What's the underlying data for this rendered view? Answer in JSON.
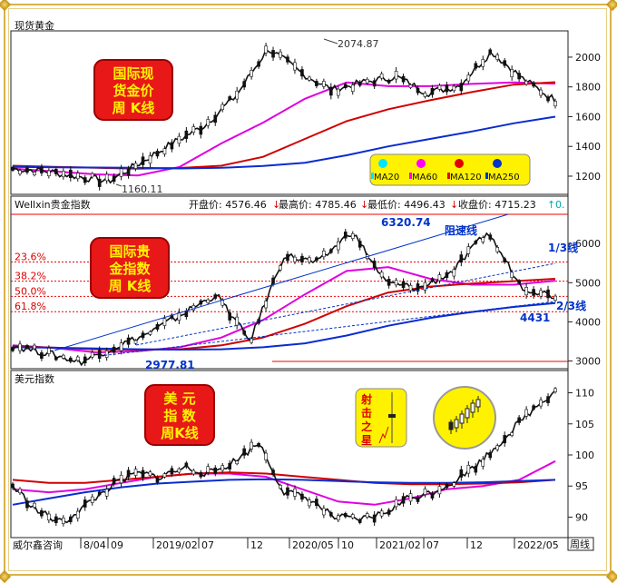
{
  "charts": [
    {
      "panel_title": "现货黄金",
      "badge": [
        "国际现",
        "货金价",
        "周 K线"
      ],
      "y_ticks": [
        "2000",
        "1800",
        "1600",
        "1400",
        "1200"
      ],
      "annotations": {
        "high": "2074.87",
        "low": "1160.11"
      },
      "legend": [
        {
          "label": "MA20",
          "color": "#00e5ff"
        },
        {
          "label": "MA60",
          "color": "#ff00ff"
        },
        {
          "label": "MA120",
          "color": "#e00000"
        },
        {
          "label": "MA250",
          "color": "#0033cc"
        }
      ]
    },
    {
      "panel_title": "Wellxin贵金指数",
      "info": {
        "open_label": "开盘价: 4576.46",
        "high_label": "最高价: 4785.46",
        "low_label": "最低价: 4496.43",
        "close_label": "收盘价: 4715.23",
        "extra_label": "0."
      },
      "badge": [
        "国际贵",
        "金指数",
        "周 K线"
      ],
      "fib_labels": [
        "23.6%",
        "38.2%",
        "50.0%",
        "61.8%"
      ],
      "y_ticks": [
        "6000",
        "5000",
        "4000",
        "3000"
      ],
      "annotations": {
        "high": "6320.74",
        "low": "2977.81",
        "support": "4431",
        "resistance_label": "阻速线",
        "one_third": "1/3线",
        "two_third": "2/3线"
      }
    },
    {
      "panel_title": "美元指数",
      "badge": [
        "美  元",
        "指  数",
        "周K线"
      ],
      "y_ticks": [
        "110",
        "105",
        "100",
        "95",
        "90"
      ],
      "star_badge": [
        "射",
        "击",
        "之",
        "星"
      ]
    }
  ],
  "x_axis": {
    "source_label": "威尔鑫咨询",
    "ticks": [
      "8/04",
      "09",
      "2019/02",
      "07",
      "12",
      "2020/05",
      "10",
      "2021/02",
      "07",
      "12",
      "2022/05"
    ],
    "mode_label": "周线"
  },
  "chart_data": [
    {
      "type": "candlestick",
      "title": "现货黄金",
      "ylim": [
        1090,
        2140
      ],
      "y_ticks": [
        1200,
        1400,
        1600,
        1800,
        2000
      ],
      "series": [
        {
          "name": "MA20",
          "values": []
        },
        {
          "name": "MA60",
          "values": [
            1250,
            1232,
            1212,
            1205,
            1262,
            1420,
            1560,
            1720,
            1830,
            1805,
            1805,
            1820,
            1830,
            1822
          ]
        },
        {
          "name": "MA120",
          "values": [
            1270,
            1262,
            1256,
            1250,
            1255,
            1270,
            1330,
            1450,
            1570,
            1650,
            1710,
            1765,
            1815,
            1832
          ]
        },
        {
          "name": "MA250",
          "values": [
            1262,
            1260,
            1258,
            1256,
            1252,
            1256,
            1268,
            1290,
            1340,
            1400,
            1450,
            1500,
            1555,
            1600
          ]
        }
      ],
      "close_path": [
        1250,
        1235,
        1200,
        1165,
        1290,
        1420,
        1540,
        1740,
        2060,
        1900,
        1780,
        1830,
        1870,
        1760,
        1810,
        2040,
        1850,
        1710
      ],
      "annotations": {
        "high": 2074.87,
        "low": 1160.11
      }
    },
    {
      "type": "candlestick",
      "title": "Wellxin贵金指数",
      "ylim": [
        2850,
        6700
      ],
      "y_ticks": [
        3000,
        4000,
        5000,
        6000
      ],
      "series": [
        {
          "name": "MA60",
          "values": [
            3400,
            3330,
            3220,
            3250,
            3350,
            3600,
            4050,
            4700,
            5300,
            5400,
            5100,
            4950,
            4950,
            5050
          ]
        },
        {
          "name": "MA120",
          "values": [
            3380,
            3340,
            3300,
            3290,
            3300,
            3400,
            3600,
            3950,
            4400,
            4750,
            4900,
            4980,
            5040,
            5100
          ]
        },
        {
          "name": "MA250",
          "values": [
            3350,
            3340,
            3320,
            3300,
            3290,
            3300,
            3350,
            3450,
            3650,
            3900,
            4100,
            4250,
            4380,
            4480
          ]
        }
      ],
      "close_path": [
        3400,
        3200,
        2980,
        3350,
        3700,
        4200,
        4700,
        3500,
        5700,
        5500,
        6320,
        5000,
        4850,
        5300,
        6300,
        4900,
        4650
      ],
      "fib_levels": [
        {
          "label": "23.6%",
          "value": 5530
        },
        {
          "label": "38.2%",
          "value": 5040
        },
        {
          "label": "50.0%",
          "value": 4650
        },
        {
          "label": "61.8%",
          "value": 4260
        }
      ],
      "annotations": {
        "high": 6320.74,
        "low": 2977.81,
        "support": 4431
      }
    },
    {
      "type": "line",
      "title": "美元指数",
      "ylim": [
        87,
        113
      ],
      "y_ticks": [
        90,
        95,
        100,
        105,
        110
      ],
      "series": [
        {
          "name": "MA60",
          "values": [
            94.5,
            94,
            94.5,
            95.5,
            96.5,
            97,
            97,
            96.5,
            94.5,
            92.5,
            92,
            93,
            94.5,
            95,
            96,
            99
          ]
        },
        {
          "name": "MA120",
          "values": [
            96,
            95.5,
            95.5,
            96,
            96.5,
            97,
            97.2,
            97,
            96.5,
            96,
            95.5,
            95.3,
            95.3,
            95.4,
            95.6,
            96
          ]
        },
        {
          "name": "MA250",
          "values": [
            92,
            93,
            94,
            94.8,
            95.4,
            95.7,
            96,
            96.1,
            96,
            95.8,
            95.6,
            95.5,
            95.5,
            95.6,
            95.8,
            96
          ]
        }
      ],
      "close_path": [
        95,
        91,
        89,
        92,
        95,
        97,
        96.5,
        98,
        97,
        99,
        102,
        94,
        93,
        90,
        89.5,
        90.5,
        93,
        94,
        96,
        99,
        103,
        107,
        110.5
      ]
    }
  ]
}
